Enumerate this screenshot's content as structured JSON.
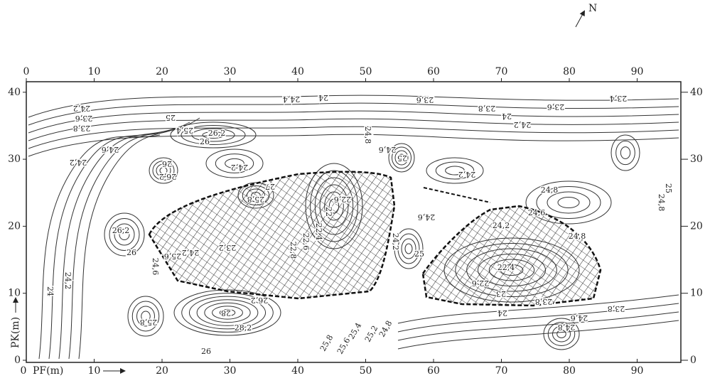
{
  "north": "N",
  "x_axis": {
    "label": "PF(m)",
    "ticks": [
      0,
      10,
      20,
      30,
      40,
      50,
      60,
      70,
      80,
      90
    ]
  },
  "y_axis": {
    "label": "PK(m)",
    "ticks": [
      0,
      10,
      20,
      30,
      40
    ]
  },
  "contour_labels": [
    "24,2",
    "23,6",
    "23,8",
    "24,4",
    "24",
    "23,6",
    "23,8",
    "23,6",
    "23,4",
    "24",
    "24,2",
    "24,8",
    "25",
    "25,4",
    "26,2",
    "26",
    "24,6",
    "26",
    "26,2",
    "24,2",
    "24,2",
    "24,6",
    "25",
    "24,2",
    "24,8",
    "24,8",
    "25",
    "25,8",
    "27",
    "22",
    "22,6",
    "26,2",
    "26",
    "24,6",
    "25,6",
    "24,2",
    "23,2",
    "22,8",
    "22,6",
    "22,4",
    "24,6",
    "24,2",
    "25",
    "24,6",
    "24,2",
    "24,8",
    "22,4",
    "22,6",
    "23",
    "23,8",
    "24",
    "23,8",
    "24,6",
    "24,8",
    "26,2",
    "28",
    "28,2",
    "25,8",
    "26",
    "25,8",
    "25,6",
    "25,4",
    "25,2",
    "24,8",
    "24",
    "24,2"
  ]
}
